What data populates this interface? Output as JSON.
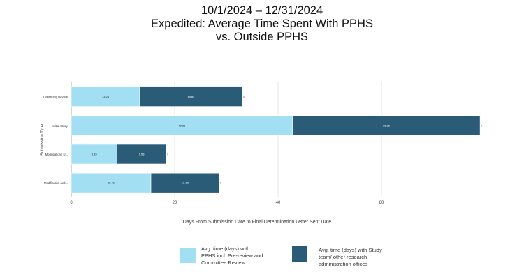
{
  "chart_data": {
    "type": "bar",
    "orientation": "horizontal",
    "stacked": true,
    "title_lines": [
      "10/1/2024 – 12/31/2024",
      "Expedited: Average Time Spent With PPHS",
      "vs. Outside PPHS"
    ],
    "xlabel": "Days From Submission Date to Final Determination Letter Sent Date",
    "ylabel": "Submission Type",
    "xlim": [
      0,
      80
    ],
    "xticks": [
      0,
      20,
      40,
      60
    ],
    "grid": true,
    "categories": [
      "Continuing Review",
      "Initial Study",
      "Modification / U...",
      "Modification and..."
    ],
    "series": [
      {
        "name": "Avg. time (days) with PPHS incl. Pre-review and Committee Review",
        "color": "#a3dff2",
        "values": [
          13.24,
          42.81,
          8.83,
          15.41
        ],
        "labels": [
          "13.24",
          "42.81",
          "8.83",
          "15.41"
        ]
      },
      {
        "name": "Avg. time (days) with Study team/ other research administration offices",
        "color": "#2a5b77",
        "values": [
          19.84,
          36.26,
          9.53,
          13.18
        ],
        "labels": [
          "19.84",
          "36.26",
          "9.53",
          "13.18"
        ]
      }
    ],
    "legend_position": "bottom"
  }
}
